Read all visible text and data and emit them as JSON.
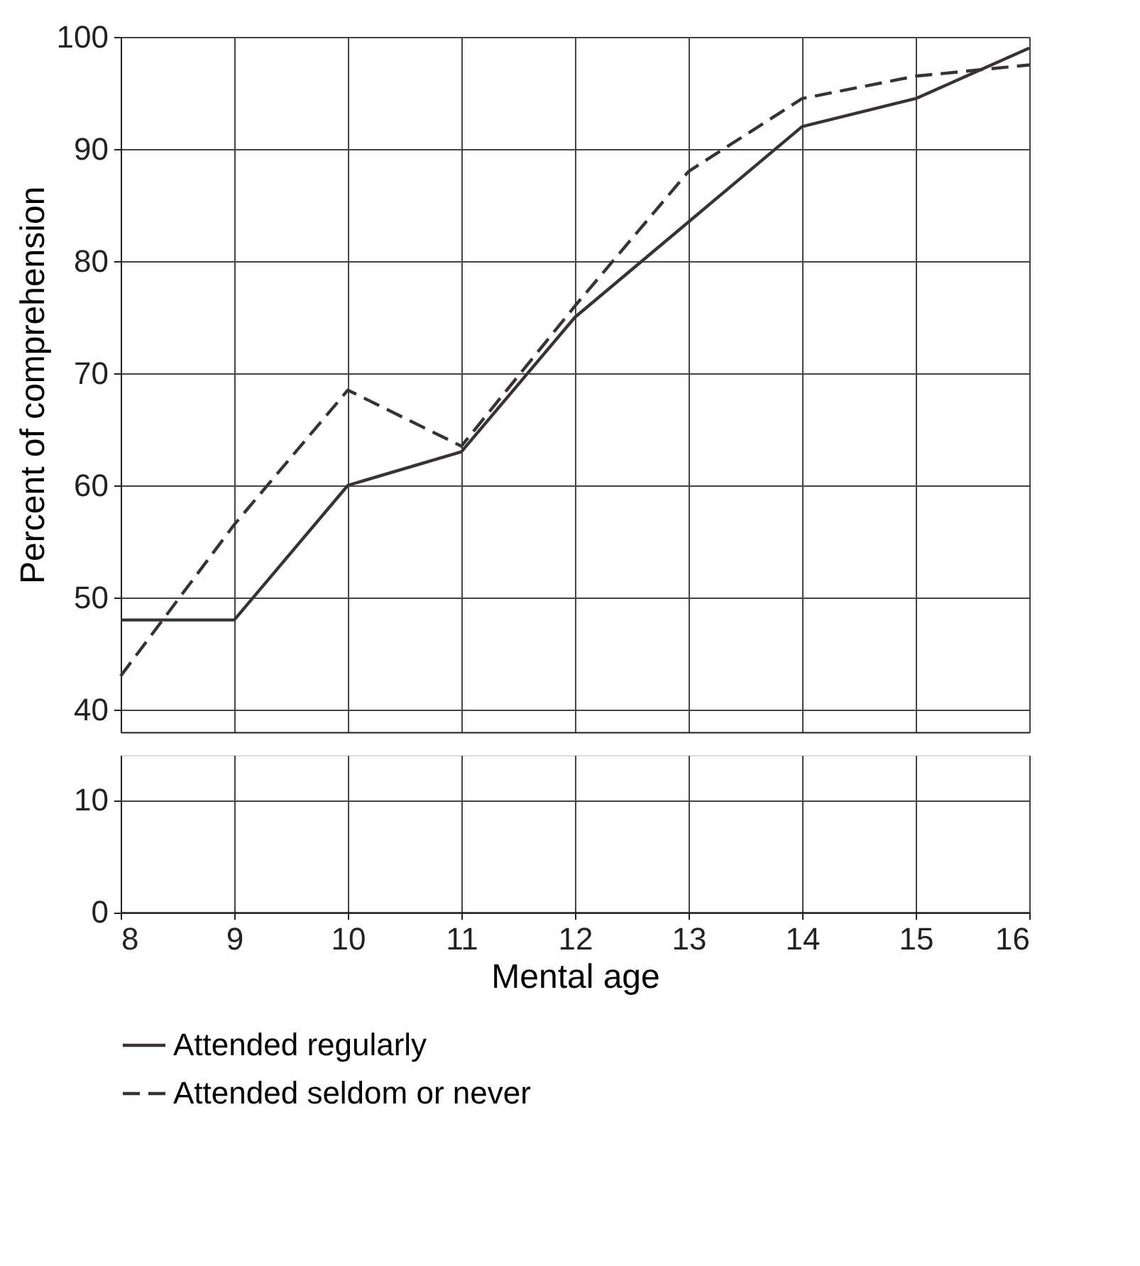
{
  "chart_data": [
    {
      "type": "line",
      "ylabel": "Percent of comprehension",
      "x": [
        8,
        9,
        10,
        11,
        12,
        13,
        14,
        15,
        16
      ],
      "xlim": [
        8,
        16
      ],
      "xticks": [
        8,
        9,
        10,
        11,
        12,
        13,
        14,
        15,
        16
      ],
      "ylim": [
        38,
        100
      ],
      "yticks": [
        40,
        50,
        60,
        70,
        80,
        90,
        100
      ],
      "grid": true,
      "tick_labels": "y",
      "legend": "bottom",
      "series": [
        {
          "name": "Attended regularly",
          "color": "#3a3230",
          "line_style": "solid",
          "values": [
            48,
            48,
            60,
            63,
            75,
            83.5,
            92,
            94.5,
            99
          ]
        },
        {
          "name": "Attended seldom or never",
          "color": "#3a3230",
          "line_style": "dashed",
          "values": [
            43,
            56.5,
            68.5,
            63.5,
            76,
            88,
            94.5,
            96.5,
            97.5
          ]
        }
      ]
    },
    {
      "type": "line",
      "xlabel": "Mental age",
      "xlim": [
        8,
        16
      ],
      "xticks": [
        8,
        9,
        10,
        11,
        12,
        13,
        14,
        15,
        16
      ],
      "ylim": [
        0,
        14
      ],
      "yticks": [
        0,
        10
      ],
      "grid": true
    }
  ]
}
